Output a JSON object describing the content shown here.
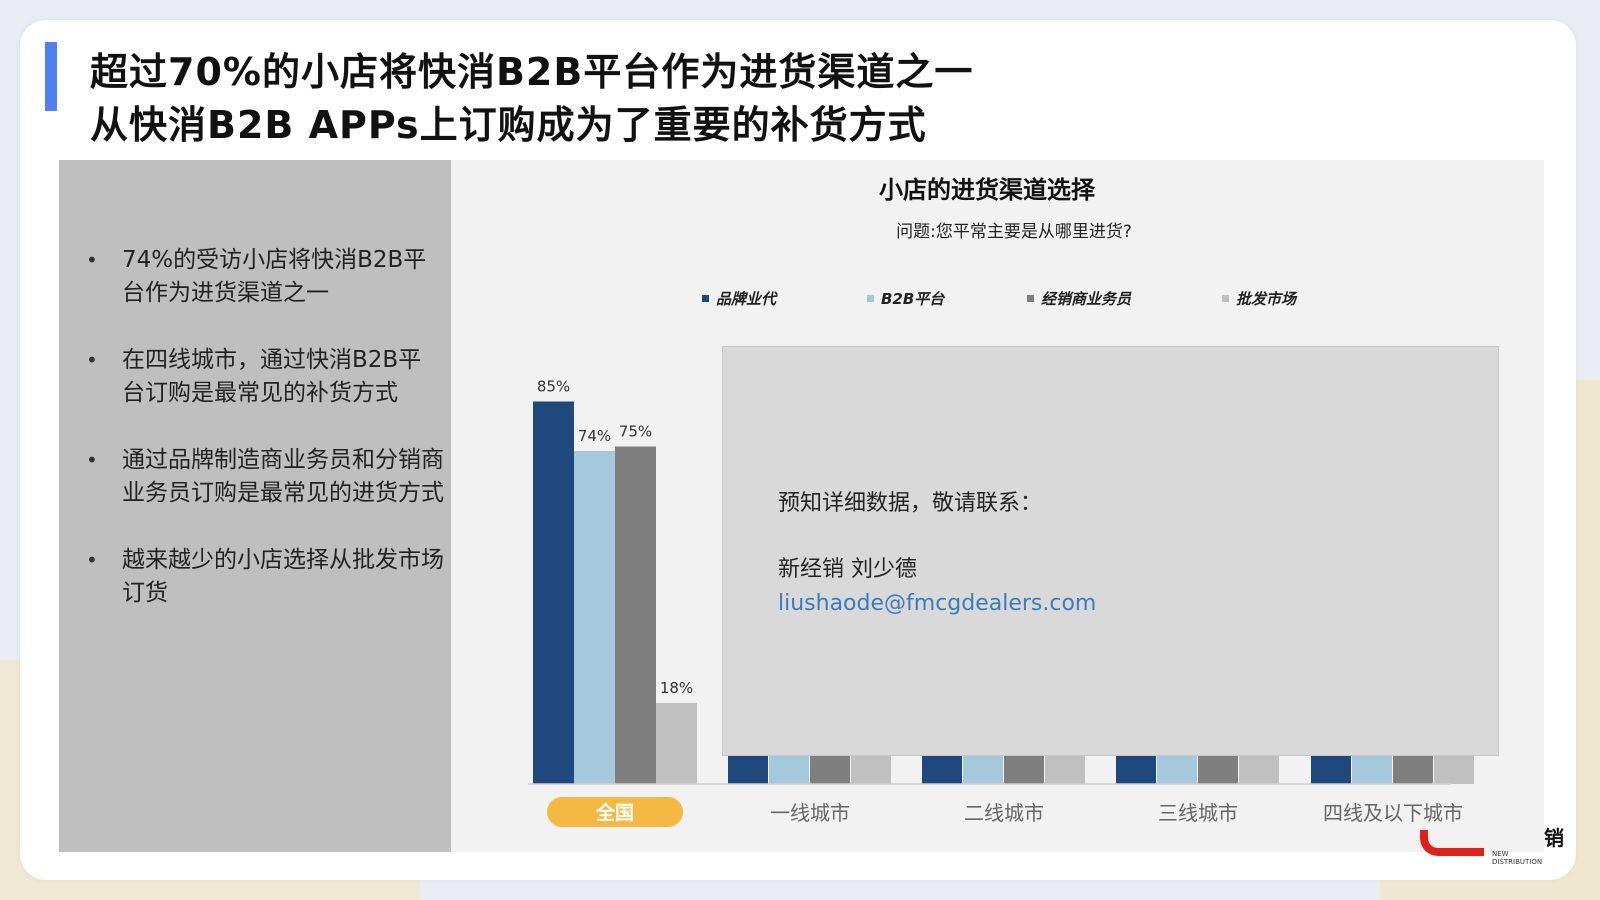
{
  "title": {
    "line1": "超过70%的小店将快消B2B平台作为进货渠道之一",
    "line2": "从快消B2B APPs上订购成为了重要的补货方式"
  },
  "bullets": [
    "74%的受访小店将快消B2B平台作为进货渠道之一",
    "在四线城市，通过快消B2B平台订购是最常见的补货方式",
    "通过品牌制造商业务员和分销商业务员订购是最常见的进货方式",
    "越来越少的小店选择从批发市场订货"
  ],
  "overlay": {
    "line1": "预知详细数据，敬请联系：",
    "line2": "新经销 刘少德",
    "email": "liushaode@fmcgdealers.com"
  },
  "logo": {
    "en": "NEW DISTRIBUTION",
    "cn": "销"
  },
  "colors": {
    "accent": "#4f81f0",
    "series": [
      "#1f497d",
      "#a5c8dc",
      "#7f7f7f",
      "#c0c0c0"
    ],
    "highlight": "#f4b942"
  },
  "chart_data": {
    "type": "bar",
    "title": "小店的进货渠道选择",
    "subtitle": "问题:您平常主要是从哪里进货?",
    "categories": [
      "全国",
      "一线城市",
      "二线城市",
      "三线城市",
      "四线及以下城市"
    ],
    "highlighted_category": "全国",
    "legend_position": "top",
    "ylim": [
      0,
      100
    ],
    "grid": false,
    "series": [
      {
        "name": "品牌业代",
        "values": [
          85,
          null,
          null,
          null,
          null
        ],
        "labels": [
          "85%",
          "",
          "",
          "",
          ""
        ]
      },
      {
        "name": "B2B平台",
        "values": [
          74,
          null,
          null,
          null,
          null
        ],
        "labels": [
          "74%",
          "",
          "",
          "",
          ""
        ]
      },
      {
        "name": "经销商业务员",
        "values": [
          75,
          null,
          null,
          null,
          null
        ],
        "labels": [
          "75%",
          "",
          "",
          "",
          ""
        ]
      },
      {
        "name": "批发市场",
        "values": [
          18,
          null,
          null,
          null,
          null
        ],
        "labels": [
          "18%",
          "",
          "",
          "",
          ""
        ]
      }
    ]
  }
}
